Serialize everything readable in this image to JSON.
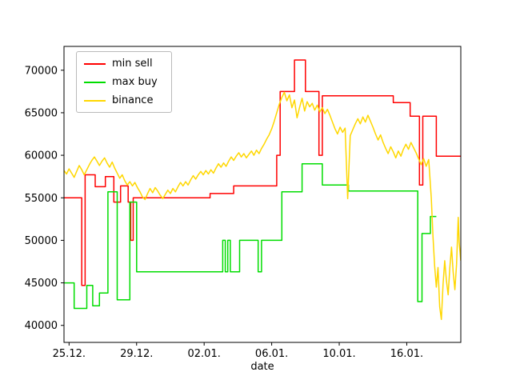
{
  "chart_data": {
    "type": "line",
    "title": "",
    "xlabel": "date",
    "ylabel": "",
    "legend_position": "upper left",
    "grid": false,
    "axes_color": "#000000",
    "xlim": [
      -0.3,
      23.2
    ],
    "ylim": [
      38000,
      72800
    ],
    "x_tick_days": [
      0,
      4,
      8,
      12,
      16,
      20
    ],
    "x_tick_labels": [
      "25.12.",
      "29.12.",
      "02.01.",
      "06.01.",
      "10.01.",
      "16.01."
    ],
    "y_ticks": [
      40000,
      45000,
      50000,
      55000,
      60000,
      65000,
      70000
    ],
    "series": [
      {
        "name": "min sell",
        "color": "#ff0000",
        "points": [
          [
            -0.3,
            55000
          ],
          [
            0.75,
            55000
          ],
          [
            0.75,
            44700
          ],
          [
            0.95,
            44700
          ],
          [
            0.95,
            57700
          ],
          [
            1.55,
            57700
          ],
          [
            1.55,
            56300
          ],
          [
            2.15,
            56300
          ],
          [
            2.15,
            57500
          ],
          [
            2.65,
            57500
          ],
          [
            2.65,
            54500
          ],
          [
            3.05,
            54500
          ],
          [
            3.05,
            56400
          ],
          [
            3.5,
            56400
          ],
          [
            3.5,
            54500
          ],
          [
            3.65,
            54500
          ],
          [
            3.65,
            50000
          ],
          [
            3.8,
            50000
          ],
          [
            3.8,
            55000
          ],
          [
            8.35,
            55000
          ],
          [
            8.35,
            55500
          ],
          [
            9.75,
            55500
          ],
          [
            9.75,
            56400
          ],
          [
            12.3,
            56400
          ],
          [
            12.3,
            60000
          ],
          [
            12.5,
            60000
          ],
          [
            12.5,
            67500
          ],
          [
            13.35,
            67500
          ],
          [
            13.35,
            71200
          ],
          [
            14.0,
            71200
          ],
          [
            14.0,
            67500
          ],
          [
            14.8,
            67500
          ],
          [
            14.8,
            60000
          ],
          [
            15.0,
            60000
          ],
          [
            15.0,
            67000
          ],
          [
            19.2,
            67000
          ],
          [
            19.2,
            66200
          ],
          [
            20.2,
            66200
          ],
          [
            20.2,
            64600
          ],
          [
            20.75,
            64600
          ],
          [
            20.75,
            56500
          ],
          [
            20.95,
            56500
          ],
          [
            20.95,
            64600
          ],
          [
            21.75,
            64600
          ],
          [
            21.75,
            59900
          ],
          [
            23.2,
            59900
          ]
        ]
      },
      {
        "name": "max buy",
        "color": "#00dd00",
        "points": [
          [
            -0.3,
            45000
          ],
          [
            0.3,
            45000
          ],
          [
            0.3,
            42000
          ],
          [
            1.05,
            42000
          ],
          [
            1.05,
            44700
          ],
          [
            1.4,
            44700
          ],
          [
            1.4,
            42300
          ],
          [
            1.8,
            42300
          ],
          [
            1.8,
            43800
          ],
          [
            2.3,
            43800
          ],
          [
            2.3,
            55700
          ],
          [
            2.85,
            55700
          ],
          [
            2.85,
            43000
          ],
          [
            3.6,
            43000
          ],
          [
            3.6,
            54500
          ],
          [
            4.0,
            54500
          ],
          [
            4.0,
            46300
          ],
          [
            9.1,
            46300
          ],
          [
            9.1,
            50000
          ],
          [
            9.25,
            50000
          ],
          [
            9.25,
            46300
          ],
          [
            9.4,
            46300
          ],
          [
            9.4,
            50000
          ],
          [
            9.55,
            50000
          ],
          [
            9.55,
            46300
          ],
          [
            10.1,
            46300
          ],
          [
            10.1,
            50000
          ],
          [
            11.2,
            50000
          ],
          [
            11.2,
            46300
          ],
          [
            11.4,
            46300
          ],
          [
            11.4,
            50000
          ],
          [
            12.6,
            50000
          ],
          [
            12.6,
            55700
          ],
          [
            13.8,
            55700
          ],
          [
            13.8,
            59000
          ],
          [
            15.0,
            59000
          ],
          [
            15.0,
            56500
          ],
          [
            16.55,
            56500
          ],
          [
            16.55,
            55800
          ],
          [
            20.65,
            55800
          ],
          [
            20.65,
            42800
          ],
          [
            20.9,
            42800
          ],
          [
            20.9,
            50800
          ],
          [
            21.4,
            50800
          ],
          [
            21.4,
            52800
          ],
          [
            21.75,
            52800
          ]
        ]
      },
      {
        "name": "binance",
        "color": "#ffd700",
        "points": [
          [
            -0.3,
            58200
          ],
          [
            -0.15,
            57800
          ],
          [
            0,
            58400
          ],
          [
            0.15,
            57900
          ],
          [
            0.3,
            57400
          ],
          [
            0.45,
            58100
          ],
          [
            0.6,
            58800
          ],
          [
            0.75,
            58300
          ],
          [
            0.9,
            57700
          ],
          [
            1.05,
            58300
          ],
          [
            1.2,
            58900
          ],
          [
            1.35,
            59400
          ],
          [
            1.5,
            59800
          ],
          [
            1.65,
            59300
          ],
          [
            1.8,
            58800
          ],
          [
            1.95,
            59300
          ],
          [
            2.1,
            59700
          ],
          [
            2.25,
            59100
          ],
          [
            2.4,
            58600
          ],
          [
            2.55,
            59200
          ],
          [
            2.7,
            58500
          ],
          [
            2.85,
            57900
          ],
          [
            3.0,
            57300
          ],
          [
            3.15,
            57700
          ],
          [
            3.3,
            57000
          ],
          [
            3.45,
            56500
          ],
          [
            3.6,
            56900
          ],
          [
            3.75,
            56400
          ],
          [
            3.9,
            56800
          ],
          [
            4.05,
            56200
          ],
          [
            4.2,
            55700
          ],
          [
            4.35,
            55100
          ],
          [
            4.5,
            54800
          ],
          [
            4.65,
            55500
          ],
          [
            4.8,
            56100
          ],
          [
            4.95,
            55600
          ],
          [
            5.1,
            56200
          ],
          [
            5.25,
            55800
          ],
          [
            5.4,
            55300
          ],
          [
            5.55,
            54900
          ],
          [
            5.7,
            55400
          ],
          [
            5.85,
            55900
          ],
          [
            6.0,
            55500
          ],
          [
            6.15,
            56100
          ],
          [
            6.3,
            55700
          ],
          [
            6.45,
            56300
          ],
          [
            6.6,
            56800
          ],
          [
            6.75,
            56400
          ],
          [
            6.9,
            56900
          ],
          [
            7.05,
            56500
          ],
          [
            7.2,
            57100
          ],
          [
            7.35,
            57600
          ],
          [
            7.5,
            57200
          ],
          [
            7.65,
            57700
          ],
          [
            7.8,
            58100
          ],
          [
            7.95,
            57700
          ],
          [
            8.1,
            58200
          ],
          [
            8.25,
            57800
          ],
          [
            8.4,
            58300
          ],
          [
            8.55,
            57900
          ],
          [
            8.7,
            58500
          ],
          [
            8.85,
            59000
          ],
          [
            9.0,
            58600
          ],
          [
            9.15,
            59100
          ],
          [
            9.3,
            58700
          ],
          [
            9.45,
            59300
          ],
          [
            9.6,
            59800
          ],
          [
            9.75,
            59400
          ],
          [
            9.9,
            59900
          ],
          [
            10.05,
            60300
          ],
          [
            10.2,
            59800
          ],
          [
            10.35,
            60200
          ],
          [
            10.5,
            59700
          ],
          [
            10.65,
            60100
          ],
          [
            10.8,
            60500
          ],
          [
            10.95,
            60000
          ],
          [
            11.1,
            60600
          ],
          [
            11.25,
            60200
          ],
          [
            11.4,
            60800
          ],
          [
            11.55,
            61300
          ],
          [
            11.7,
            61900
          ],
          [
            11.85,
            62400
          ],
          [
            12.0,
            63100
          ],
          [
            12.15,
            64000
          ],
          [
            12.3,
            65000
          ],
          [
            12.45,
            66000
          ],
          [
            12.6,
            66800
          ],
          [
            12.75,
            67400
          ],
          [
            12.9,
            66400
          ],
          [
            13.05,
            67100
          ],
          [
            13.2,
            65600
          ],
          [
            13.35,
            66500
          ],
          [
            13.5,
            64400
          ],
          [
            13.65,
            65600
          ],
          [
            13.8,
            66700
          ],
          [
            13.95,
            65200
          ],
          [
            14.1,
            66300
          ],
          [
            14.25,
            65700
          ],
          [
            14.4,
            66100
          ],
          [
            14.55,
            65300
          ],
          [
            14.7,
            65900
          ],
          [
            14.85,
            65100
          ],
          [
            15.0,
            65600
          ],
          [
            15.15,
            64900
          ],
          [
            15.3,
            65400
          ],
          [
            15.45,
            64700
          ],
          [
            15.6,
            63900
          ],
          [
            15.75,
            63100
          ],
          [
            15.9,
            62500
          ],
          [
            16.05,
            63300
          ],
          [
            16.2,
            62700
          ],
          [
            16.35,
            63200
          ],
          [
            16.5,
            54900
          ],
          [
            16.65,
            62300
          ],
          [
            16.8,
            63000
          ],
          [
            16.95,
            63700
          ],
          [
            17.1,
            64300
          ],
          [
            17.25,
            63700
          ],
          [
            17.4,
            64500
          ],
          [
            17.55,
            63900
          ],
          [
            17.7,
            64700
          ],
          [
            17.85,
            64000
          ],
          [
            18.0,
            63300
          ],
          [
            18.15,
            62500
          ],
          [
            18.3,
            61800
          ],
          [
            18.45,
            62400
          ],
          [
            18.6,
            61500
          ],
          [
            18.75,
            60800
          ],
          [
            18.9,
            60200
          ],
          [
            19.05,
            61000
          ],
          [
            19.2,
            60400
          ],
          [
            19.35,
            59700
          ],
          [
            19.5,
            60500
          ],
          [
            19.65,
            59900
          ],
          [
            19.8,
            60700
          ],
          [
            19.95,
            61300
          ],
          [
            20.1,
            60700
          ],
          [
            20.25,
            61500
          ],
          [
            20.4,
            60900
          ],
          [
            20.55,
            60300
          ],
          [
            20.7,
            59600
          ],
          [
            20.85,
            58900
          ],
          [
            21.0,
            59600
          ],
          [
            21.15,
            58700
          ],
          [
            21.3,
            59500
          ],
          [
            21.45,
            55000
          ],
          [
            21.55,
            50500
          ],
          [
            21.65,
            47000
          ],
          [
            21.75,
            44500
          ],
          [
            21.85,
            46800
          ],
          [
            21.95,
            42200
          ],
          [
            22.05,
            40700
          ],
          [
            22.15,
            44800
          ],
          [
            22.25,
            47600
          ],
          [
            22.35,
            45200
          ],
          [
            22.45,
            43600
          ],
          [
            22.55,
            46800
          ],
          [
            22.65,
            49200
          ],
          [
            22.75,
            46200
          ],
          [
            22.85,
            44200
          ],
          [
            22.95,
            47200
          ],
          [
            23.05,
            52700
          ],
          [
            23.1,
            49800
          ],
          [
            23.2,
            47600
          ]
        ]
      }
    ]
  }
}
